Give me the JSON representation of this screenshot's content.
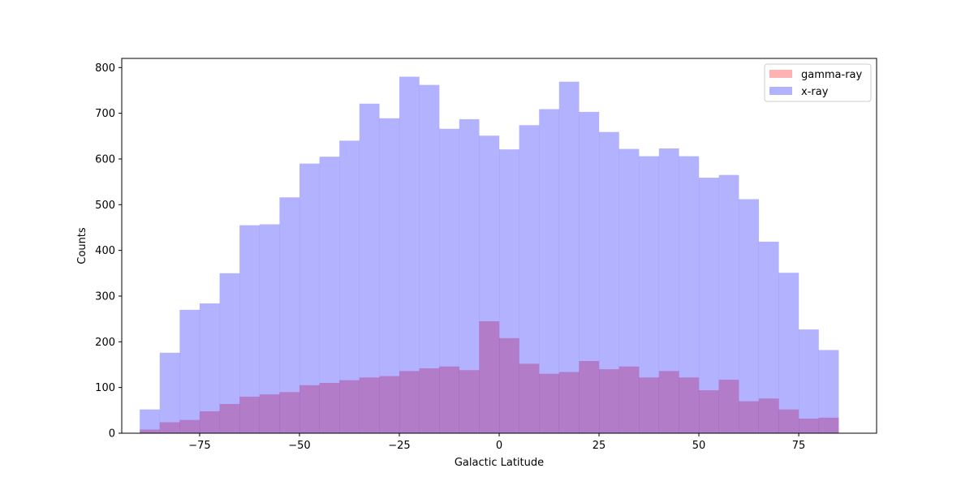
{
  "chart_data": {
    "type": "histogram",
    "title": "",
    "xlabel": "Galactic Latitude",
    "ylabel": "Counts",
    "xlim": [
      -94.5,
      94.5
    ],
    "ylim": [
      0,
      820
    ],
    "x_ticks": [
      -75,
      -50,
      -25,
      0,
      25,
      50,
      75
    ],
    "x_tick_labels": [
      "−75",
      "−50",
      "−25",
      "0",
      "25",
      "50",
      "75"
    ],
    "y_ticks": [
      0,
      100,
      200,
      300,
      400,
      500,
      600,
      700,
      800
    ],
    "y_tick_labels": [
      "0",
      "100",
      "200",
      "300",
      "400",
      "500",
      "600",
      "700",
      "800"
    ],
    "bin_edges": [
      -90,
      -85,
      -80,
      -75,
      -70,
      -65,
      -60,
      -55,
      -50,
      -45,
      -40,
      -35,
      -30,
      -25,
      -20,
      -15,
      -10,
      -5,
      0,
      5,
      10,
      15,
      20,
      25,
      30,
      35,
      40,
      45,
      50,
      55,
      60,
      65,
      70,
      75,
      80,
      85
    ],
    "legend_position": "top-right",
    "series": [
      {
        "name": "gamma-ray",
        "color": "#ff0000",
        "alpha": 0.3,
        "values": [
          8,
          24,
          29,
          48,
          64,
          80,
          85,
          90,
          105,
          110,
          116,
          122,
          125,
          136,
          142,
          146,
          138,
          245,
          208,
          152,
          130,
          134,
          158,
          140,
          146,
          122,
          136,
          122,
          94,
          117,
          70,
          76,
          52,
          32,
          34
        ]
      },
      {
        "name": "x-ray",
        "color": "#0000ff",
        "alpha": 0.3,
        "values": [
          52,
          176,
          270,
          284,
          350,
          455,
          457,
          516,
          590,
          605,
          640,
          721,
          689,
          780,
          762,
          666,
          687,
          651,
          621,
          674,
          709,
          769,
          703,
          659,
          622,
          606,
          623,
          606,
          559,
          565,
          512,
          419,
          351,
          227,
          182
        ]
      }
    ]
  }
}
